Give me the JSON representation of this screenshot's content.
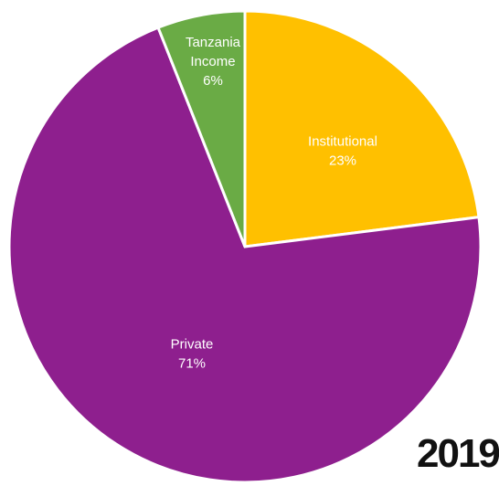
{
  "chart_data": {
    "type": "pie",
    "year_label": "2019",
    "slices": [
      {
        "label": "Institutional",
        "value": 23,
        "value_label": "23%",
        "color": "#FFC000"
      },
      {
        "label": "Private",
        "value": 71,
        "value_label": "71%",
        "color": "#8E1F8E"
      },
      {
        "label": "Tanzania Income",
        "value": 6,
        "value_label": "6%",
        "color": "#6AAB45"
      }
    ],
    "legend": "none",
    "start_angle": "12 o'clock, clockwise"
  }
}
